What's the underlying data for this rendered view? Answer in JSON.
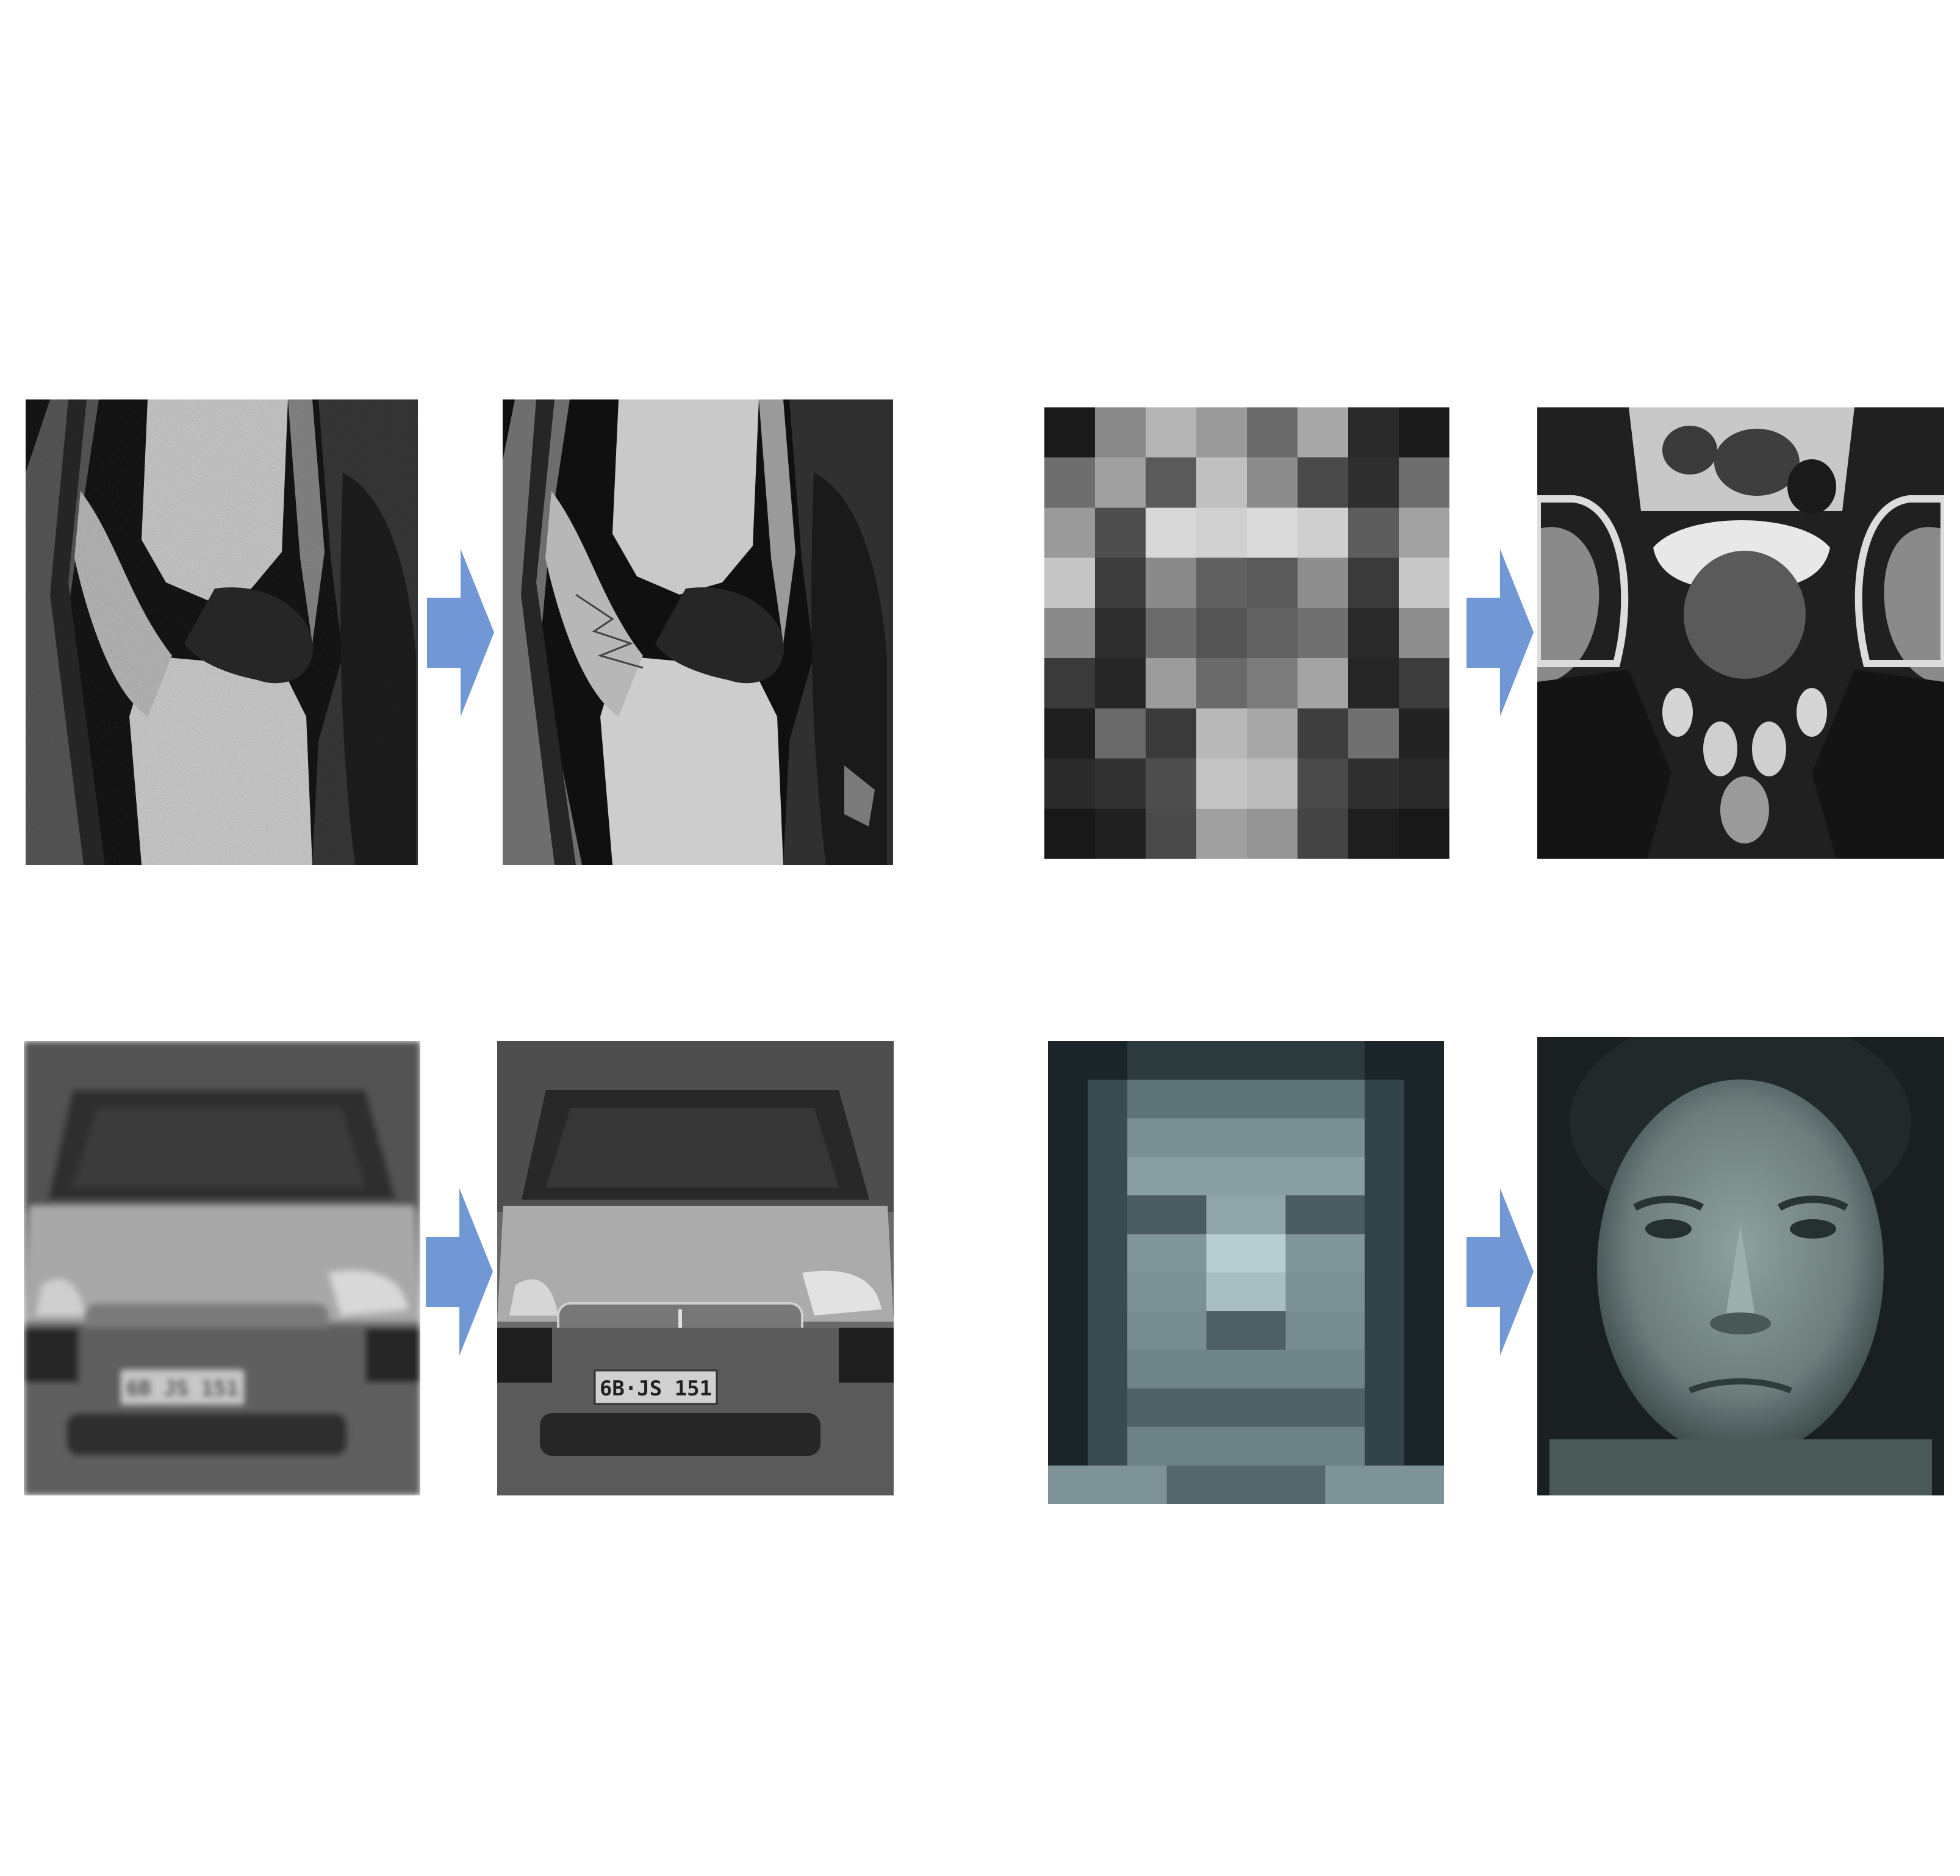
{
  "figure": {
    "arrow_color": "#7198d4",
    "pairs": [
      {
        "subject": "knee-mri",
        "input": {
          "icon": "knee-mri-noisy-image"
        },
        "output": {
          "icon": "knee-mri-clean-image"
        }
      },
      {
        "subject": "pelvis-mri",
        "input": {
          "icon": "pelvis-mri-pixelated-image"
        },
        "output": {
          "icon": "pelvis-mri-sharp-image"
        }
      },
      {
        "subject": "car-front",
        "input": {
          "icon": "car-blurry-image",
          "plate_text": "6B JS 151"
        },
        "output": {
          "icon": "car-sharp-image",
          "plate_text": "6B·JS 151"
        }
      },
      {
        "subject": "face",
        "input": {
          "icon": "face-pixelated-image"
        },
        "output": {
          "icon": "face-smooth-image"
        }
      }
    ]
  }
}
